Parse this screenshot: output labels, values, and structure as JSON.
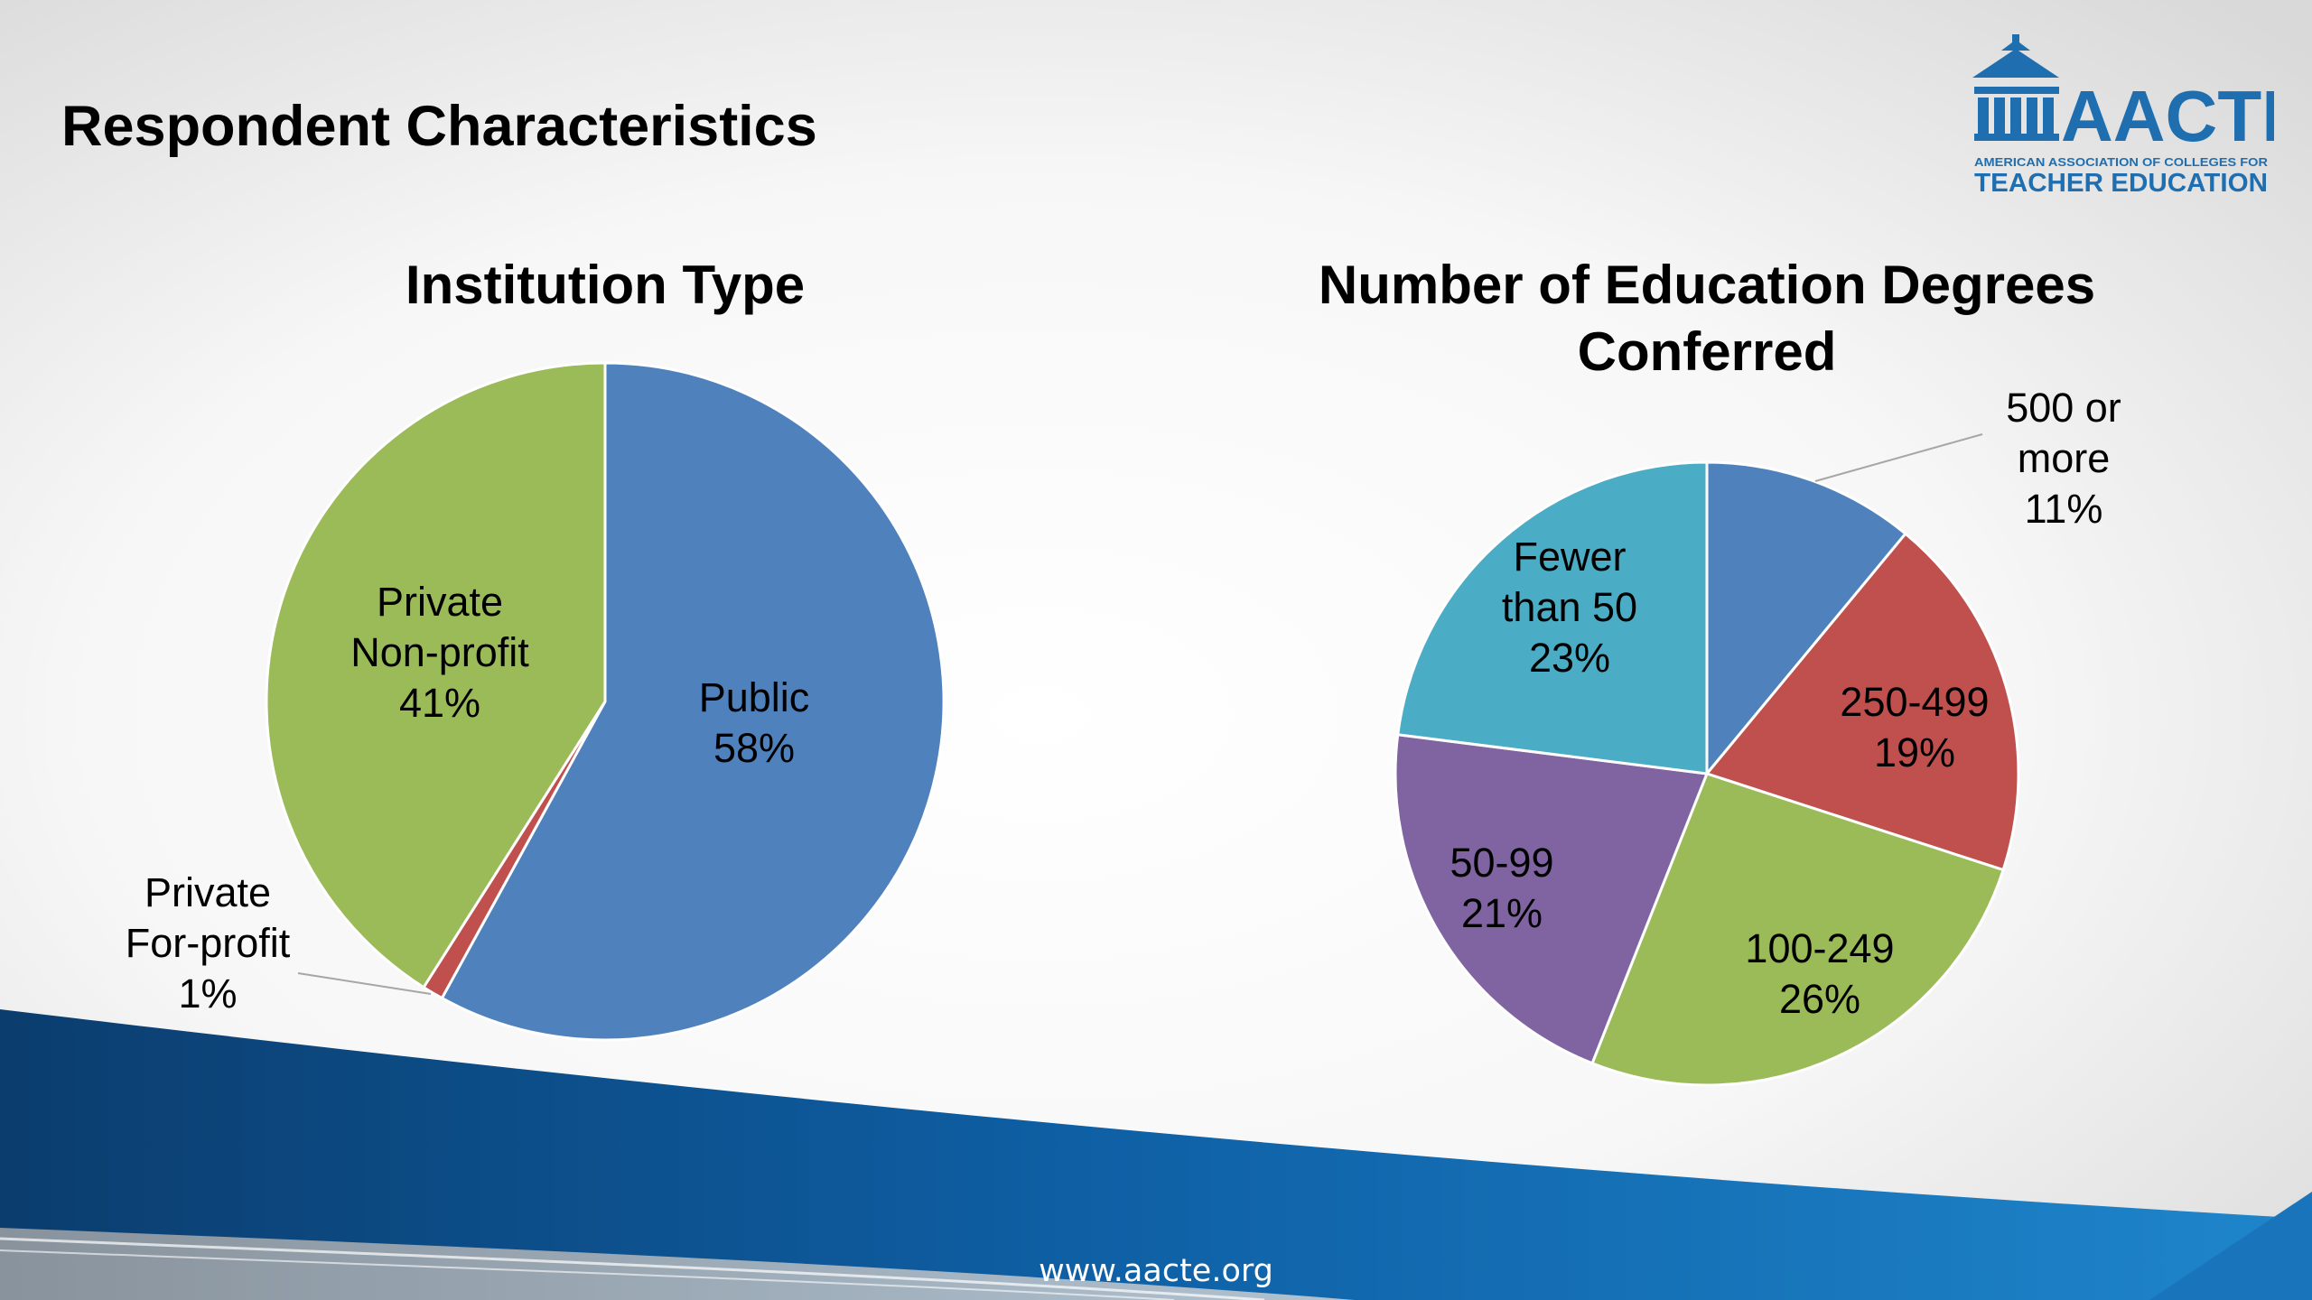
{
  "slide": {
    "title": "Respondent Characteristics",
    "footer_url": "www.aacte.org"
  },
  "logo": {
    "name": "AACTE",
    "subtitle_line1": "AMERICAN ASSOCIATION OF COLLEGES FOR",
    "subtitle_line2": "TEACHER EDUCATION",
    "color": "#1f6fb0"
  },
  "chart_data": [
    {
      "type": "pie",
      "title": "Institution Type",
      "slices": [
        {
          "label": "Public",
          "value": 58,
          "display": "58%",
          "color": "#4f81bd"
        },
        {
          "label": "Private For-profit",
          "value": 1,
          "display": "1%",
          "color": "#c0504d"
        },
        {
          "label": "Private Non-profit",
          "value": 41,
          "display": "41%",
          "color": "#9bbb59"
        }
      ]
    },
    {
      "type": "pie",
      "title": "Number of Education Degrees Conferred",
      "slices": [
        {
          "label": "500 or more",
          "value": 11,
          "display": "11%",
          "color": "#4f81bd"
        },
        {
          "label": "250-499",
          "value": 19,
          "display": "19%",
          "color": "#c0504d"
        },
        {
          "label": "100-249",
          "value": 26,
          "display": "26%",
          "color": "#9bbb59"
        },
        {
          "label": "50-99",
          "value": 21,
          "display": "21%",
          "color": "#8064a2"
        },
        {
          "label": "Fewer than 50",
          "value": 23,
          "display": "23%",
          "color": "#4bacc6"
        }
      ]
    }
  ]
}
